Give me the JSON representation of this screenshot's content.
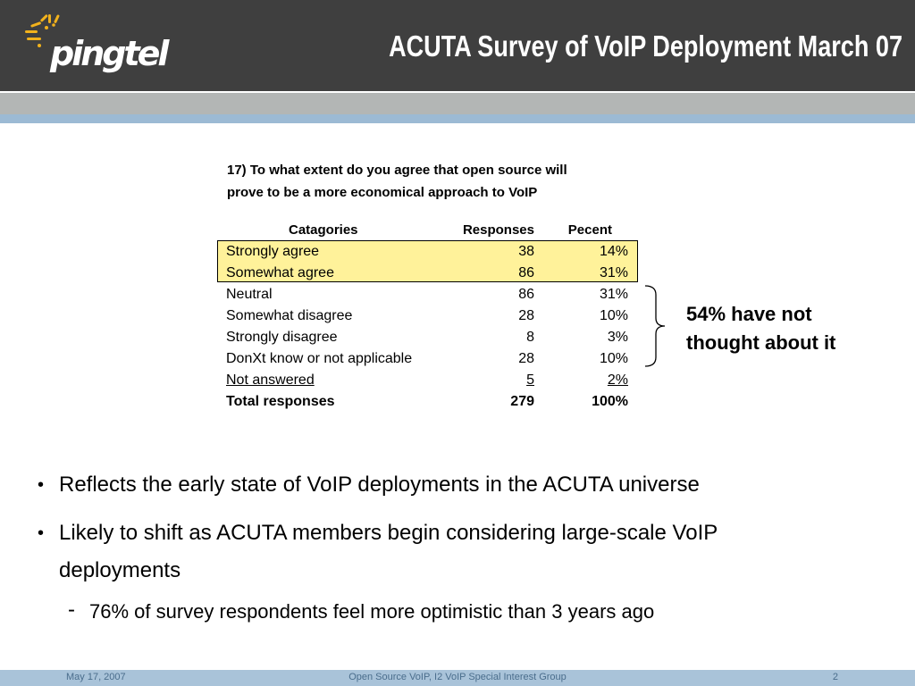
{
  "header": {
    "logo_text": "pingtel",
    "title": "ACUTA Survey of VoIP Deployment March 07"
  },
  "question": {
    "line1": "17)  To what extent do you agree that open source will",
    "line2": "prove to be a more economical approach to VoIP"
  },
  "table": {
    "headers": {
      "category": "Catagories",
      "responses": "Responses",
      "percent": "Pecent"
    },
    "rows": [
      {
        "category": "Strongly agree",
        "responses": "38",
        "percent": "14%"
      },
      {
        "category": "Somewhat agree",
        "responses": "86",
        "percent": "31%"
      },
      {
        "category": "Neutral",
        "responses": "86",
        "percent": "31%"
      },
      {
        "category": "Somewhat disagree",
        "responses": "28",
        "percent": "10%"
      },
      {
        "category": "Strongly disagree",
        "responses": "8",
        "percent": "3%"
      },
      {
        "category": "DonXt know or not applicable",
        "responses": "28",
        "percent": "10%"
      },
      {
        "category": "Not answered",
        "responses": "5",
        "percent": "2%"
      }
    ],
    "total": {
      "category": "Total responses",
      "responses": "279",
      "percent": "100%"
    }
  },
  "annotation": {
    "line1": "54% have not",
    "line2": "thought about it"
  },
  "bullets": [
    {
      "text": "Reflects the early state of VoIP deployments in the ACUTA universe"
    },
    {
      "text1": "Likely to shift as ACUTA members begin considering large-scale VoIP",
      "text2": "deployments"
    }
  ],
  "sub_bullet": "76% of survey respondents feel more optimistic than 3 years ago",
  "footer": {
    "date": "May 17, 2007",
    "center": "Open Source VoIP, I2 VoIP Special Interest Group",
    "page": "2"
  },
  "colors": {
    "header_bg": "#3f3f3f",
    "highlight": "#fff29a",
    "footer_bg": "#a9c3d9",
    "logo_accent": "#f2b21c"
  }
}
